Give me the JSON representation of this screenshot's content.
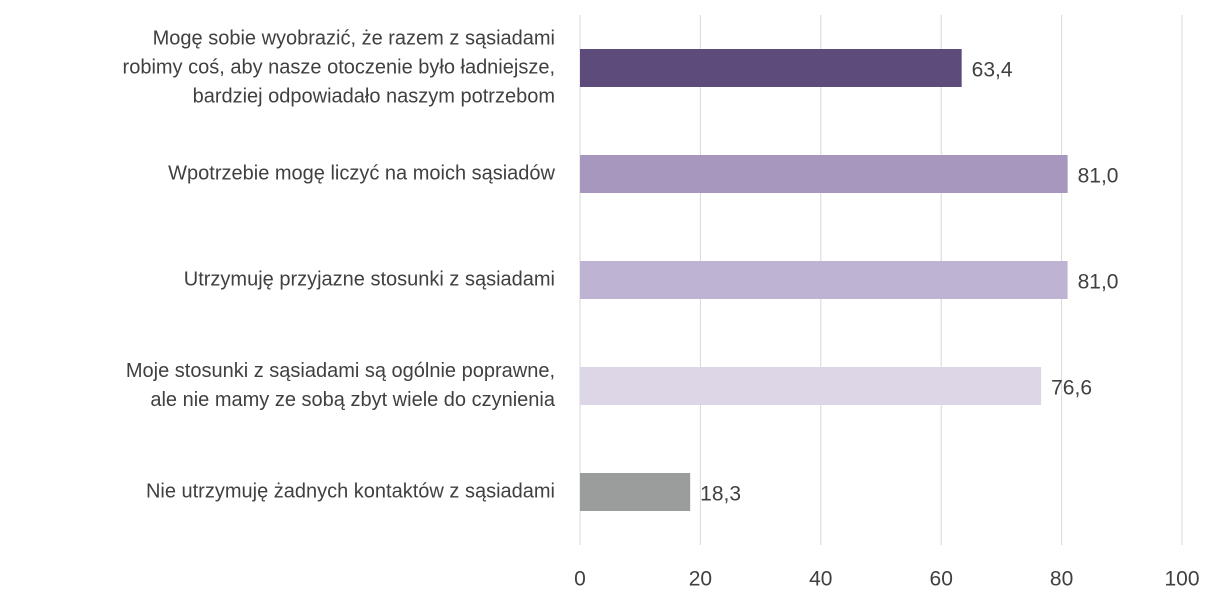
{
  "chart_data": {
    "type": "bar",
    "orientation": "horizontal",
    "categories": [
      "Mogę sobie wyobrazić, że razem z sąsiadami\nrobimy coś, aby nasze otoczenie było ładniejsze,\nbardziej odpowiadało naszym potrzebom",
      "Wpotrzebie mogę liczyć na moich sąsiadów",
      "Utrzymuję przyjazne stosunki z sąsiadami",
      "Moje stosunki z sąsiadami są ogólnie poprawne,\nale nie mamy ze sobą zbyt wiele do czynienia",
      "Nie utrzymuję żadnych kontaktów z sąsiadami"
    ],
    "values": [
      63.4,
      81.0,
      81.0,
      76.6,
      18.3
    ],
    "value_labels": [
      "63,4",
      "81,0",
      "81,0",
      "76,6",
      "18,3"
    ],
    "colors": [
      "#5d4b7b",
      "#a797bf",
      "#bfb3d4",
      "#ddd6e6",
      "#9a9d9c"
    ],
    "xlim": [
      0,
      100
    ],
    "xticks": [
      0,
      20,
      40,
      60,
      80,
      100
    ],
    "grid": true
  }
}
